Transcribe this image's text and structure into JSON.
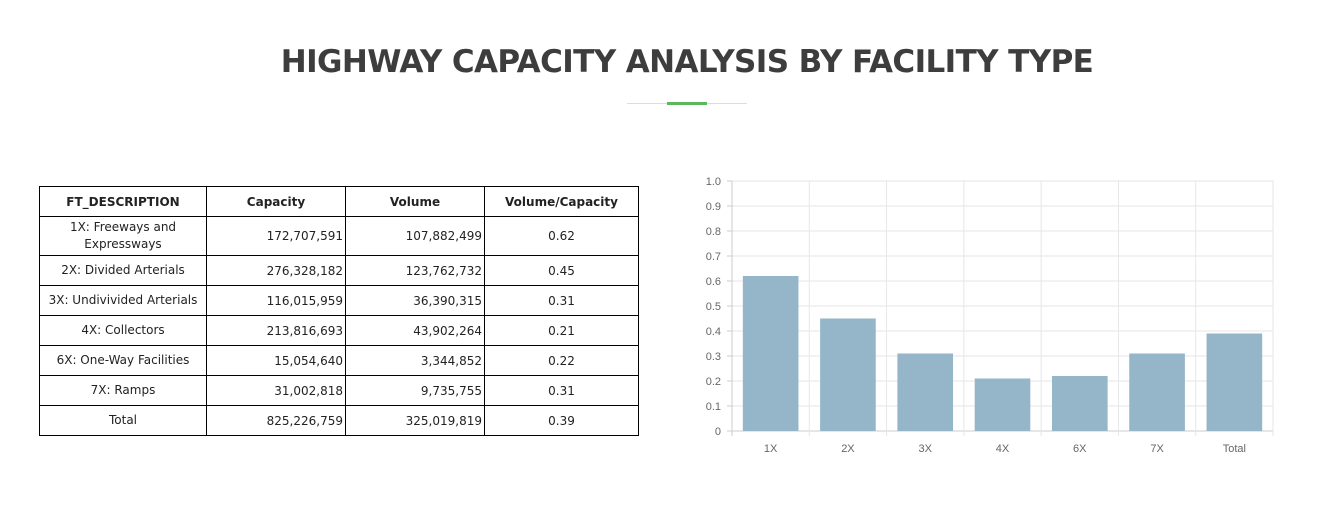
{
  "title": "HIGHWAY CAPACITY ANALYSIS BY FACILITY TYPE",
  "colors": {
    "accent": "#5cb85c",
    "bar": "#95b5c9",
    "grid": "#e6e6e6"
  },
  "table": {
    "headers": [
      "FT_DESCRIPTION",
      "Capacity",
      "Volume",
      "Volume/Capacity"
    ],
    "rows": [
      {
        "desc": "1X: Freeways and Expressways",
        "capacity": "172,707,591",
        "volume": "107,882,499",
        "ratio": "0.62"
      },
      {
        "desc": "2X: Divided Arterials",
        "capacity": "276,328,182",
        "volume": "123,762,732",
        "ratio": "0.45"
      },
      {
        "desc": "3X: Undivivided Arterials",
        "capacity": "116,015,959",
        "volume": "36,390,315",
        "ratio": "0.31"
      },
      {
        "desc": "4X: Collectors",
        "capacity": "213,816,693",
        "volume": "43,902,264",
        "ratio": "0.21"
      },
      {
        "desc": "6X: One-Way Facilities",
        "capacity": "15,054,640",
        "volume": "3,344,852",
        "ratio": "0.22"
      },
      {
        "desc": "7X: Ramps",
        "capacity": "31,002,818",
        "volume": "9,735,755",
        "ratio": "0.31"
      },
      {
        "desc": "Total",
        "capacity": "825,226,759",
        "volume": "325,019,819",
        "ratio": "0.39"
      }
    ]
  },
  "chart_data": {
    "type": "bar",
    "title": "",
    "xlabel": "",
    "ylabel": "",
    "categories": [
      "1X",
      "2X",
      "3X",
      "4X",
      "6X",
      "7X",
      "Total"
    ],
    "values": [
      0.62,
      0.45,
      0.31,
      0.21,
      0.22,
      0.31,
      0.39
    ],
    "ylim": [
      0,
      1.0
    ],
    "yticks": [
      "0",
      "0.1",
      "0.2",
      "0.3",
      "0.4",
      "0.5",
      "0.6",
      "0.7",
      "0.8",
      "0.9",
      "1.0"
    ],
    "grid": true,
    "legend": "none"
  }
}
